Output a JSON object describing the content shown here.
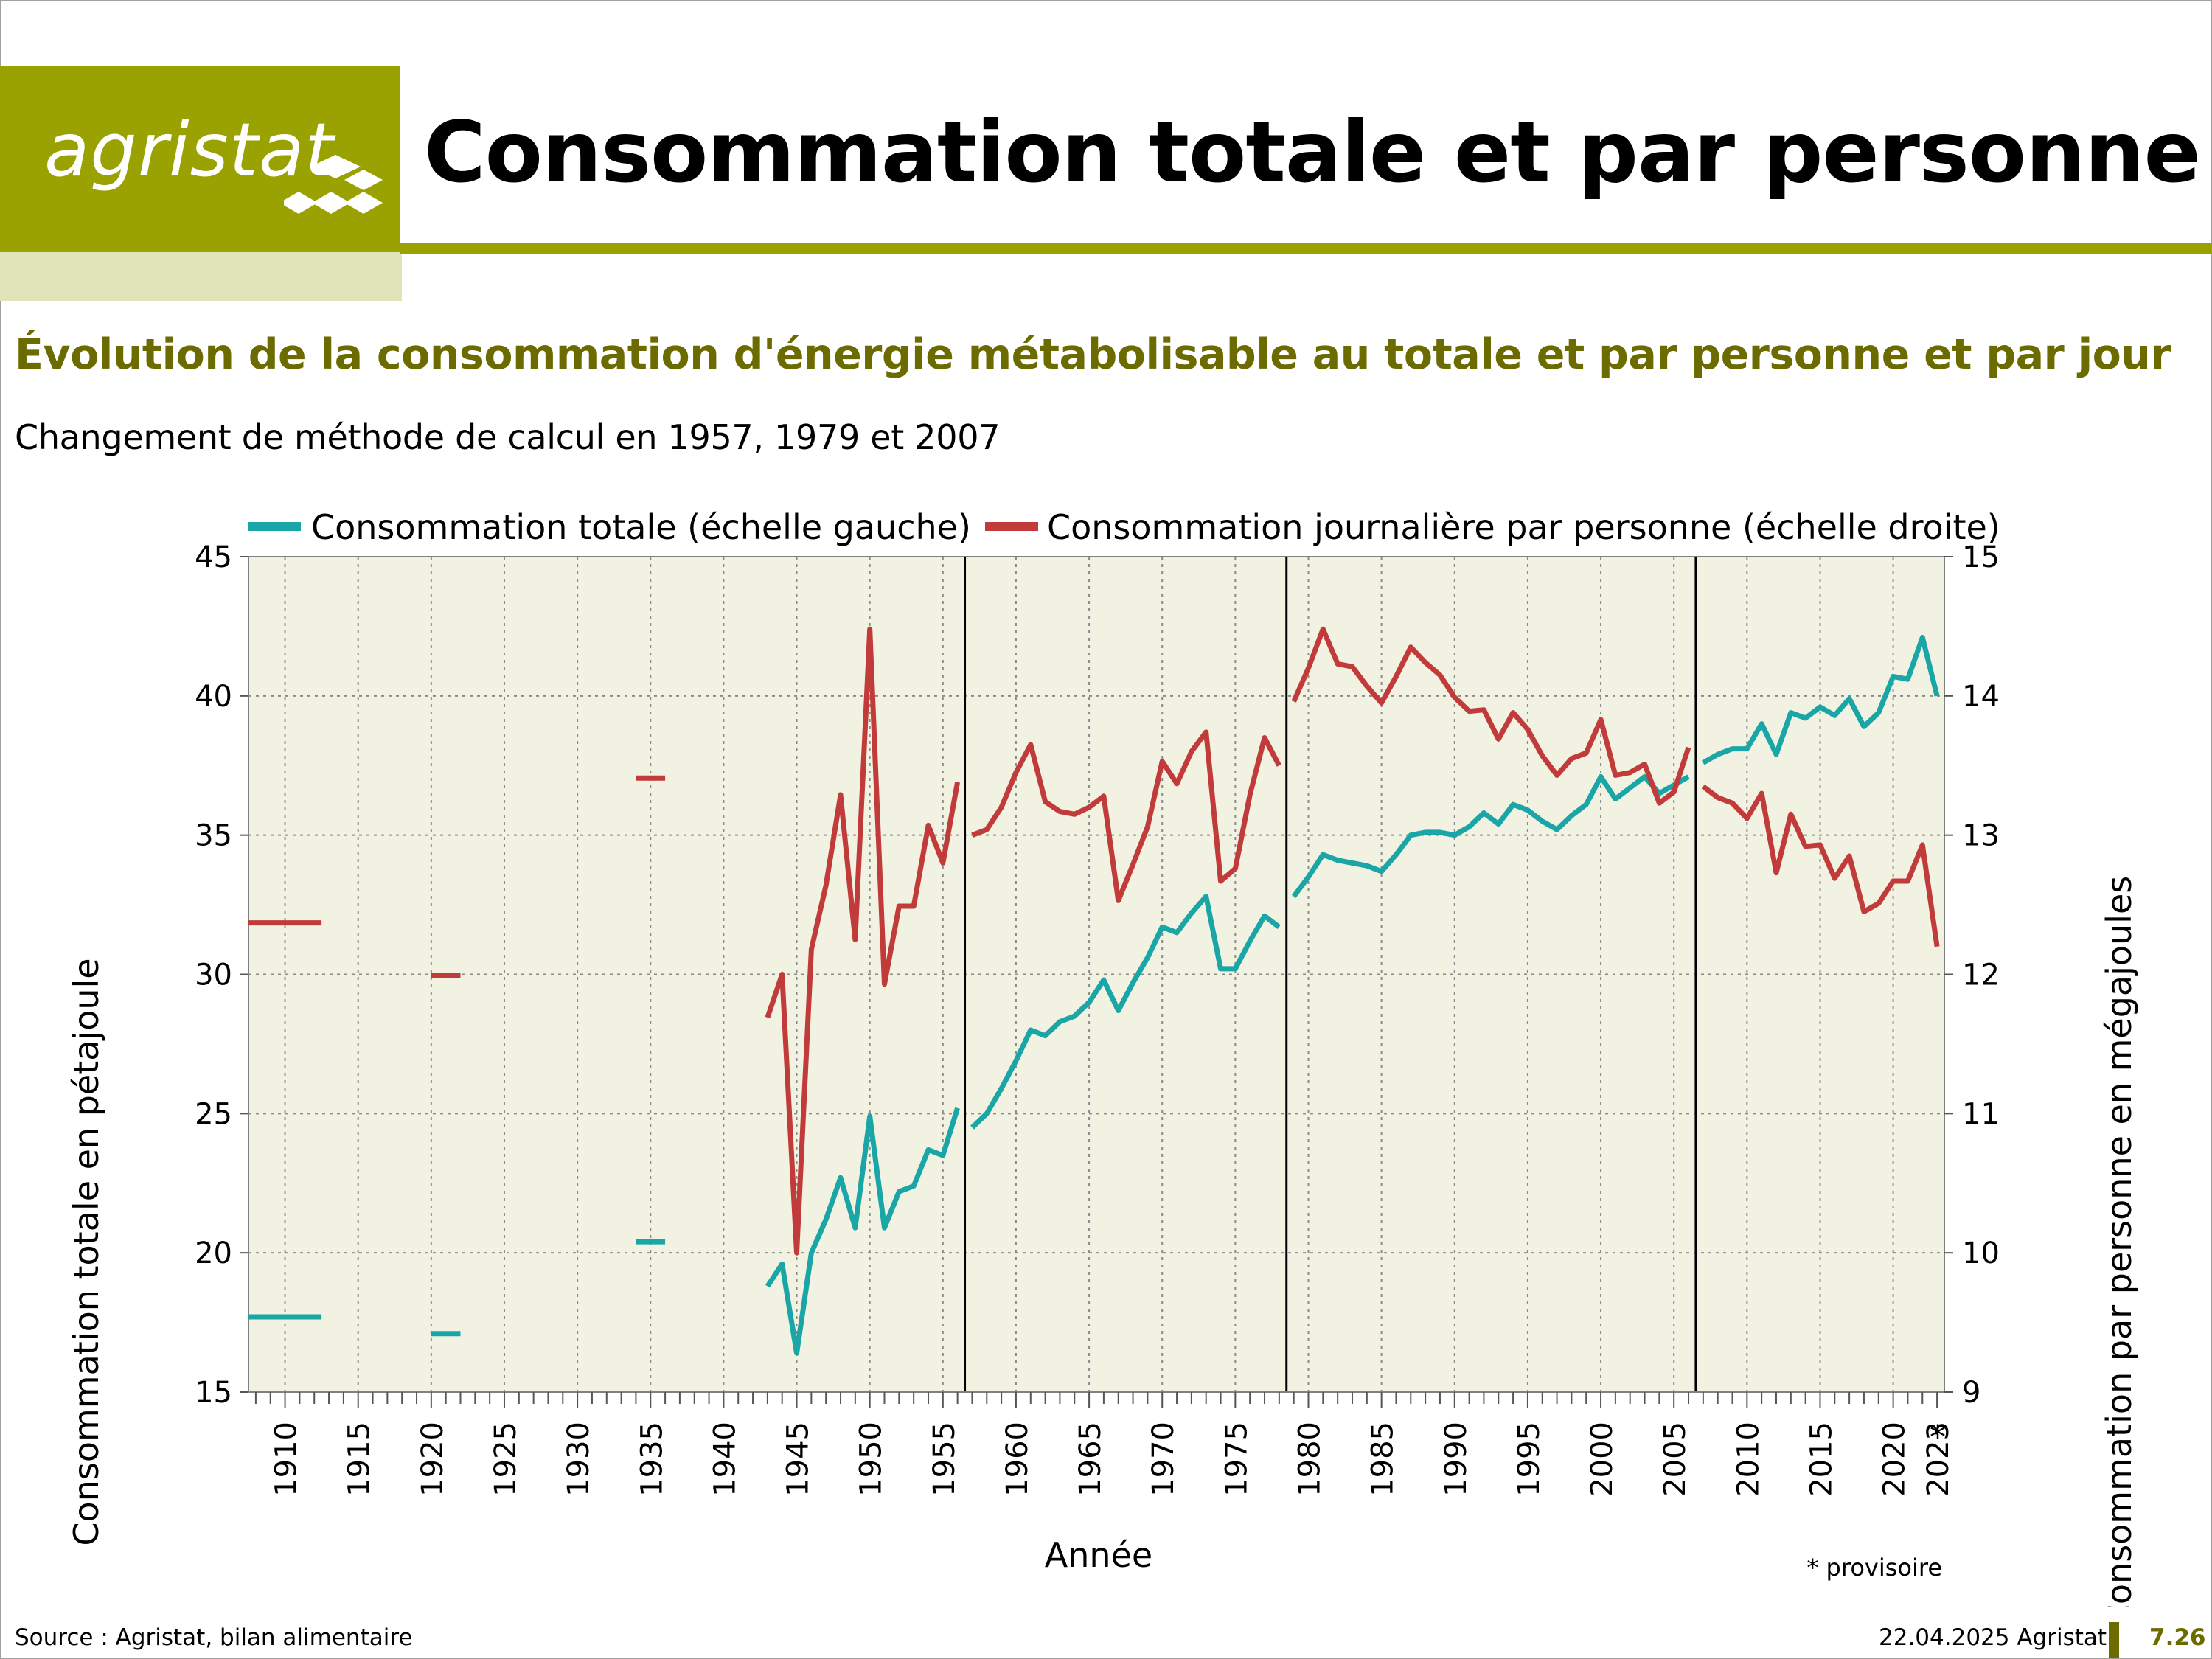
{
  "header": {
    "logo_text": "agristat",
    "title": "Consommation totale et par personne"
  },
  "subtitle": "Évolution de la consommation d'énergie métabolisable au totale et par personne et par jour",
  "method_note": "Changement de méthode de calcul en 1957, 1979 et 2007",
  "footer": {
    "source": "Source : Agristat, bilan alimentaire",
    "date": "22.04.2025 Agristat",
    "page": "7.26"
  },
  "colors": {
    "brand": "#99a200",
    "brand_light": "#e1e4b8",
    "subtitle": "#6b6b00",
    "plot_bg": "#f2f2e3",
    "series_total": "#1aa6a6",
    "series_per_person": "#c23b3b"
  },
  "chart_data": {
    "type": "line",
    "xlabel": "Année",
    "ylabel_left": "Consommation totale en pétajoule",
    "ylabel_right": "Consommation par personne en mégajoules",
    "ylim_left": [
      15,
      45
    ],
    "ylim_right": [
      9,
      15
    ],
    "yticks_left": [
      15,
      20,
      25,
      30,
      35,
      40,
      45
    ],
    "yticks_right": [
      9,
      10,
      11,
      12,
      13,
      14,
      15
    ],
    "xlim": [
      1907.5,
      2023.5
    ],
    "xtick_labels": [
      "1910",
      "1915",
      "1920",
      "1925",
      "1930",
      "1935",
      "1940",
      "1945",
      "1950",
      "1955",
      "1960",
      "1965",
      "1970",
      "1975",
      "1980",
      "1985",
      "1990",
      "1995",
      "2000",
      "2005",
      "2010",
      "2015",
      "2020",
      "2023"
    ],
    "xtick_values": [
      1910,
      1915,
      1920,
      1925,
      1930,
      1935,
      1940,
      1945,
      1950,
      1955,
      1960,
      1965,
      1970,
      1975,
      1980,
      1985,
      1990,
      1995,
      2000,
      2005,
      2010,
      2015,
      2020,
      2023
    ],
    "provisional_marker": "*",
    "provisional_note": "* provisoire",
    "method_breaks": [
      1956.5,
      1978.5,
      2006.5
    ],
    "grid": true,
    "legend_position": "top",
    "series": [
      {
        "name": "Consommation totale (échelle gauche)",
        "axis": "left",
        "segments": [
          [
            [
              1907.5,
              17.7
            ],
            [
              1912.5,
              17.7
            ]
          ],
          [
            [
              1920,
              17.1
            ],
            [
              1922,
              17.1
            ]
          ],
          [
            [
              1934,
              20.4
            ],
            [
              1936,
              20.4
            ]
          ],
          [
            [
              1943,
              18.8
            ],
            [
              1944,
              19.6
            ],
            [
              1945,
              16.4
            ],
            [
              1946,
              20.0
            ],
            [
              1947,
              21.2
            ],
            [
              1948,
              22.7
            ],
            [
              1949,
              20.9
            ],
            [
              1950,
              24.9
            ],
            [
              1951,
              20.9
            ],
            [
              1952,
              22.2
            ],
            [
              1953,
              22.4
            ],
            [
              1954,
              23.7
            ],
            [
              1955,
              23.5
            ],
            [
              1956,
              25.2
            ]
          ],
          [
            [
              1957,
              24.5
            ],
            [
              1958,
              25.0
            ],
            [
              1959,
              25.9
            ],
            [
              1960,
              26.9
            ],
            [
              1961,
              28.0
            ],
            [
              1962,
              27.8
            ],
            [
              1963,
              28.3
            ],
            [
              1964,
              28.5
            ],
            [
              1965,
              29.0
            ],
            [
              1966,
              29.8
            ],
            [
              1967,
              28.7
            ],
            [
              1968,
              29.7
            ],
            [
              1969,
              30.6
            ],
            [
              1970,
              31.7
            ],
            [
              1971,
              31.5
            ],
            [
              1972,
              32.2
            ],
            [
              1973,
              32.8
            ],
            [
              1974,
              30.2
            ],
            [
              1975,
              30.2
            ],
            [
              1976,
              31.2
            ],
            [
              1977,
              32.1
            ],
            [
              1978,
              31.7
            ]
          ],
          [
            [
              1979,
              32.8
            ],
            [
              1980,
              33.5
            ],
            [
              1981,
              34.3
            ],
            [
              1982,
              34.1
            ],
            [
              1983,
              34.0
            ],
            [
              1984,
              33.9
            ],
            [
              1985,
              33.7
            ],
            [
              1986,
              34.3
            ],
            [
              1987,
              35.0
            ],
            [
              1988,
              35.1
            ],
            [
              1989,
              35.1
            ],
            [
              1990,
              35.0
            ],
            [
              1991,
              35.3
            ],
            [
              1992,
              35.8
            ],
            [
              1993,
              35.4
            ],
            [
              1994,
              36.1
            ],
            [
              1995,
              35.9
            ],
            [
              1996,
              35.5
            ],
            [
              1997,
              35.2
            ],
            [
              1998,
              35.7
            ],
            [
              1999,
              36.1
            ],
            [
              2000,
              37.1
            ],
            [
              2001,
              36.3
            ],
            [
              2002,
              36.7
            ],
            [
              2003,
              37.1
            ],
            [
              2004,
              36.5
            ],
            [
              2005,
              36.8
            ],
            [
              2006,
              37.1
            ]
          ],
          [
            [
              2007,
              37.6
            ],
            [
              2008,
              37.9
            ],
            [
              2009,
              38.1
            ],
            [
              2010,
              38.1
            ],
            [
              2011,
              39.0
            ],
            [
              2012,
              37.9
            ],
            [
              2013,
              39.4
            ],
            [
              2014,
              39.2
            ],
            [
              2015,
              39.6
            ],
            [
              2016,
              39.3
            ],
            [
              2017,
              39.9
            ],
            [
              2018,
              38.9
            ],
            [
              2019,
              39.4
            ],
            [
              2020,
              40.7
            ],
            [
              2021,
              40.6
            ],
            [
              2022,
              42.1
            ],
            [
              2023,
              40.0
            ]
          ]
        ]
      },
      {
        "name": "Consommation journalière par personne (échelle droite)",
        "axis": "right",
        "segments": [
          [
            [
              1907.5,
              12.37
            ],
            [
              1912.5,
              12.37
            ]
          ],
          [
            [
              1920,
              11.99
            ],
            [
              1922,
              11.99
            ]
          ],
          [
            [
              1934,
              13.41
            ],
            [
              1936,
              13.41
            ]
          ],
          [
            [
              1943,
              11.69
            ],
            [
              1944,
              12.0
            ],
            [
              1945,
              10.0
            ],
            [
              1946,
              12.18
            ],
            [
              1947,
              12.64
            ],
            [
              1948,
              13.29
            ],
            [
              1949,
              12.25
            ],
            [
              1950,
              14.48
            ],
            [
              1951,
              11.93
            ],
            [
              1952,
              12.49
            ],
            [
              1953,
              12.49
            ],
            [
              1954,
              13.07
            ],
            [
              1955,
              12.8
            ],
            [
              1956,
              13.38
            ]
          ],
          [
            [
              1957,
              13.0
            ],
            [
              1958,
              13.04
            ],
            [
              1959,
              13.2
            ],
            [
              1960,
              13.45
            ],
            [
              1961,
              13.65
            ],
            [
              1962,
              13.24
            ],
            [
              1963,
              13.17
            ],
            [
              1964,
              13.15
            ],
            [
              1965,
              13.2
            ],
            [
              1966,
              13.28
            ],
            [
              1967,
              12.53
            ],
            [
              1968,
              12.79
            ],
            [
              1969,
              13.06
            ],
            [
              1970,
              13.53
            ],
            [
              1971,
              13.37
            ],
            [
              1972,
              13.6
            ],
            [
              1973,
              13.74
            ],
            [
              1974,
              12.67
            ],
            [
              1975,
              12.76
            ],
            [
              1976,
              13.29
            ],
            [
              1977,
              13.7
            ],
            [
              1978,
              13.5
            ]
          ],
          [
            [
              1979,
              13.96
            ],
            [
              1980,
              14.2
            ],
            [
              1981,
              14.48
            ],
            [
              1982,
              14.23
            ],
            [
              1983,
              14.21
            ],
            [
              1984,
              14.07
            ],
            [
              1985,
              13.95
            ],
            [
              1986,
              14.14
            ],
            [
              1987,
              14.35
            ],
            [
              1988,
              14.24
            ],
            [
              1989,
              14.15
            ],
            [
              1990,
              13.99
            ],
            [
              1991,
              13.89
            ],
            [
              1992,
              13.9
            ],
            [
              1993,
              13.69
            ],
            [
              1994,
              13.88
            ],
            [
              1995,
              13.76
            ],
            [
              1996,
              13.57
            ],
            [
              1997,
              13.43
            ],
            [
              1998,
              13.55
            ],
            [
              1999,
              13.59
            ],
            [
              2000,
              13.83
            ],
            [
              2001,
              13.43
            ],
            [
              2002,
              13.45
            ],
            [
              2003,
              13.51
            ],
            [
              2004,
              13.23
            ],
            [
              2005,
              13.31
            ],
            [
              2006,
              13.63
            ]
          ],
          [
            [
              2007,
              13.35
            ],
            [
              2008,
              13.27
            ],
            [
              2009,
              13.23
            ],
            [
              2010,
              13.12
            ],
            [
              2011,
              13.3
            ],
            [
              2012,
              12.73
            ],
            [
              2013,
              13.15
            ],
            [
              2014,
              12.92
            ],
            [
              2015,
              12.93
            ],
            [
              2016,
              12.69
            ],
            [
              2017,
              12.85
            ],
            [
              2018,
              12.45
            ],
            [
              2019,
              12.51
            ],
            [
              2020,
              12.67
            ],
            [
              2021,
              12.67
            ],
            [
              2022,
              12.93
            ],
            [
              2023,
              12.2
            ]
          ]
        ]
      }
    ]
  }
}
